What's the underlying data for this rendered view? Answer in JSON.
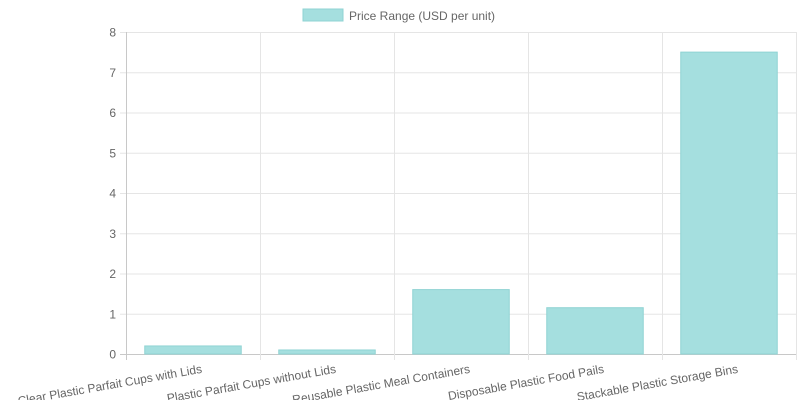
{
  "chart_data": {
    "type": "bar",
    "categories": [
      "Clear Plastic Parfait Cups with Lids",
      "Plastic Parfait Cups without Lids",
      "Reusable Plastic Meal Containers",
      "Disposable Plastic Food Pails",
      "Stackable Plastic Storage Bins"
    ],
    "series": [
      {
        "name": "Price Range (USD per unit)",
        "values": [
          0.2,
          0.1,
          1.6,
          1.15,
          7.5
        ],
        "color": "#a5dfdf",
        "border_color": "#8fd3d3"
      }
    ],
    "ylim": [
      0,
      8
    ],
    "yticks": [
      "0",
      "1",
      "2",
      "3",
      "4",
      "5",
      "6",
      "7",
      "8"
    ],
    "grid": true,
    "legend_position": "top-center"
  }
}
